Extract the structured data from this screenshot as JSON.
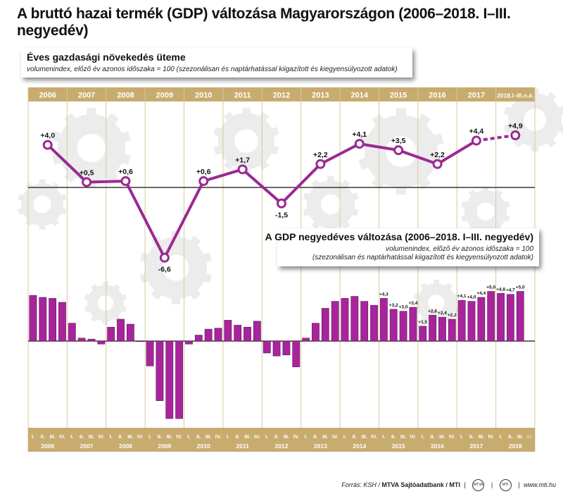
{
  "title": "A bruttó hazai termék (GDP) változása Magyarországon (2006–2018. I–III. negyedév)",
  "panel_annual": {
    "title": "Éves gazdasági növekedés üteme",
    "subtitle": "volumenindex, előző év azonos időszaka = 100 (szezonálisan és naptárhatással kiigazított és kiegyensúlyozott adatok)"
  },
  "panel_quarterly": {
    "title": "A GDP negyedéves változása (2006–2018. I–III. negyedév)",
    "subtitle1": "volumenindex, előző év azonos időszaka = 100",
    "subtitle2": "(szezonálisan és naptárhatással kiigazított és kiegyensúlyozott adatok)"
  },
  "footer": {
    "source": "Forrás: KSH / ",
    "agency": "MTVA Sajtóadatbank / MTI",
    "url": "www.mti.hu",
    "logo1": "MTVA",
    "logo2": "MTI"
  },
  "colors": {
    "gold": "#c8ab6e",
    "purple": "#9b2a92",
    "bar_fill": "#a8249c",
    "bar_stroke": "#5b1a55",
    "gear": "#ececec"
  },
  "chart_data": [
    {
      "type": "line",
      "name": "annual",
      "categories": [
        "2006",
        "2007",
        "2008",
        "2009",
        "2010",
        "2011",
        "2012",
        "2013",
        "2014",
        "2015",
        "2016",
        "2017",
        "2018.I–III.n.é."
      ],
      "values": [
        4.0,
        0.5,
        0.6,
        -6.6,
        0.6,
        1.7,
        -1.5,
        2.2,
        4.1,
        3.5,
        2.2,
        4.4,
        4.9
      ],
      "labels": [
        "+4,0",
        "+0,5",
        "+0,6",
        "-6,6",
        "+0,6",
        "+1,7",
        "-1,5",
        "+2,2",
        "+4,1",
        "+3,5",
        "+2,2",
        "+4,4",
        "+4,9"
      ],
      "last_segment_dashed": true
    },
    {
      "type": "bar",
      "name": "quarterly",
      "years": [
        "2006",
        "2007",
        "2008",
        "2009",
        "2010",
        "2011",
        "2012",
        "2013",
        "2014",
        "2015",
        "2016",
        "2017",
        "2018"
      ],
      "quarter_labels": [
        "I.",
        "II.",
        "III.",
        "IV."
      ],
      "values": [
        4.6,
        4.4,
        4.3,
        3.9,
        1.8,
        0.3,
        0.2,
        -0.3,
        1.4,
        2.2,
        1.7,
        0.0,
        -2.5,
        -6.0,
        -7.8,
        -7.8,
        -0.3,
        0.6,
        1.2,
        1.3,
        2.1,
        1.6,
        1.4,
        2.0,
        -1.2,
        -1.5,
        -1.4,
        -2.6,
        0.3,
        1.8,
        3.3,
        4.0,
        4.3,
        4.5,
        4.0,
        3.6,
        4.3,
        3.2,
        3.0,
        3.4,
        1.5,
        2.6,
        2.4,
        2.2,
        4.1,
        4.0,
        4.4,
        5.0,
        4.8,
        4.7,
        5.0
      ],
      "labels": [
        "",
        "",
        "",
        "",
        "",
        "",
        "",
        "",
        "",
        "",
        "",
        "",
        "",
        "",
        "",
        "",
        "",
        "",
        "",
        "",
        "",
        "",
        "",
        "",
        "",
        "",
        "",
        "",
        "",
        "",
        "",
        "",
        "",
        "",
        "",
        "",
        "+4,3",
        "+3,2",
        "+3,0",
        "+3,4",
        "+1,5",
        "+2,6",
        "+2,4",
        "+2,2",
        "+4,1",
        "+4,0",
        "+4,4",
        "+5,0",
        "+4,8",
        "+4,7",
        "+5,0"
      ],
      "missing_quarter_label": "IV."
    }
  ]
}
